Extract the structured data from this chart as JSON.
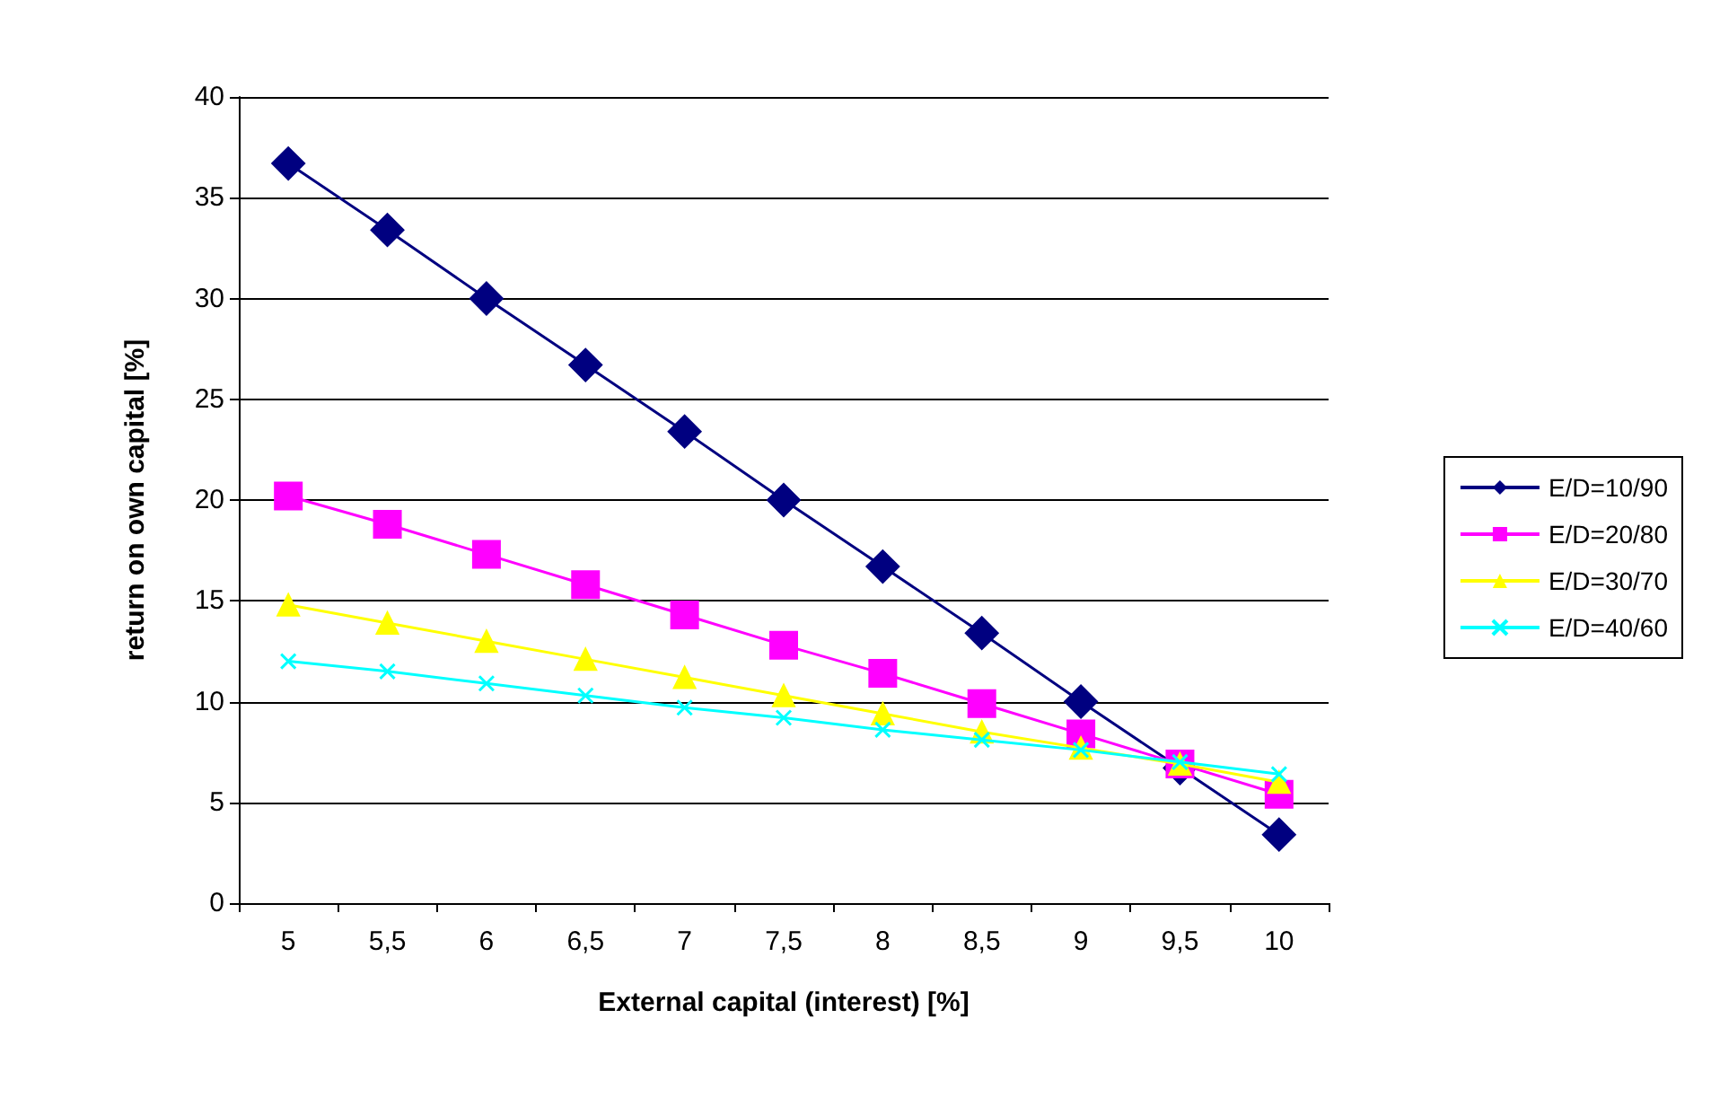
{
  "chart_data": {
    "type": "line",
    "xlabel": "External capital (interest) [%]",
    "ylabel": "return on own capital [%]",
    "categories": [
      "5",
      "5,5",
      "6",
      "6,5",
      "7",
      "7,5",
      "8",
      "8,5",
      "9",
      "9,5",
      "10"
    ],
    "series": [
      {
        "name": "E/D=10/90",
        "color": "#000080",
        "marker": "diamond",
        "values": [
          36.7,
          33.4,
          30.0,
          26.7,
          23.4,
          20.0,
          16.7,
          13.4,
          10.0,
          6.7,
          3.4
        ]
      },
      {
        "name": "E/D=20/80",
        "color": "#ff00ff",
        "marker": "square",
        "values": [
          20.2,
          18.8,
          17.3,
          15.8,
          14.3,
          12.8,
          11.4,
          9.9,
          8.4,
          6.9,
          5.4
        ]
      },
      {
        "name": "E/D=30/70",
        "color": "#ffff00",
        "marker": "triangle",
        "values": [
          14.8,
          13.9,
          13.0,
          12.1,
          11.2,
          10.3,
          9.4,
          8.5,
          7.7,
          6.9,
          6.0
        ]
      },
      {
        "name": "E/D=40/60",
        "color": "#00ffff",
        "marker": "cross",
        "values": [
          12.0,
          11.5,
          10.9,
          10.3,
          9.7,
          9.2,
          8.6,
          8.1,
          7.6,
          7.0,
          6.4
        ]
      }
    ],
    "ylim": [
      0,
      40
    ],
    "yticks": [
      0,
      5,
      10,
      15,
      20,
      25,
      30,
      35,
      40
    ],
    "grid": "y",
    "legend": "right",
    "line_style": "solid"
  }
}
